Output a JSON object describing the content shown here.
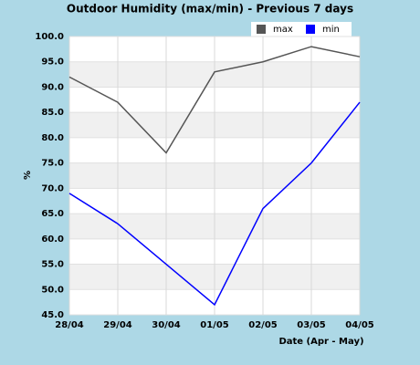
{
  "chart_data": {
    "type": "line",
    "title": "Outdoor Humidity (max/min) - Previous 7 days",
    "x_label": "Date (Apr - May)",
    "y_label": "%",
    "categories": [
      "28/04",
      "29/04",
      "30/04",
      "01/05",
      "02/05",
      "03/05",
      "04/05"
    ],
    "series": [
      {
        "name": "max",
        "color": "#555555",
        "values": [
          92,
          87,
          77,
          93,
          95,
          98,
          96
        ]
      },
      {
        "name": "min",
        "color": "#0000ff",
        "values": [
          69,
          63,
          55,
          47,
          66,
          75,
          87
        ]
      }
    ],
    "ylim": [
      45,
      100
    ],
    "yticks": [
      {
        "value": 45,
        "label": "45.0"
      },
      {
        "value": 50,
        "label": "50.0"
      },
      {
        "value": 55,
        "label": "55.0"
      },
      {
        "value": 60,
        "label": "60.0"
      },
      {
        "value": 65,
        "label": "65.0"
      },
      {
        "value": 70,
        "label": "70.0"
      },
      {
        "value": 75,
        "label": "75.0"
      },
      {
        "value": 80,
        "label": "80.0"
      },
      {
        "value": 85,
        "label": "85.0"
      },
      {
        "value": 90,
        "label": "90.0"
      },
      {
        "value": 95,
        "label": "95.0"
      },
      {
        "value": 100,
        "label": "100.0"
      }
    ],
    "grid": true
  }
}
